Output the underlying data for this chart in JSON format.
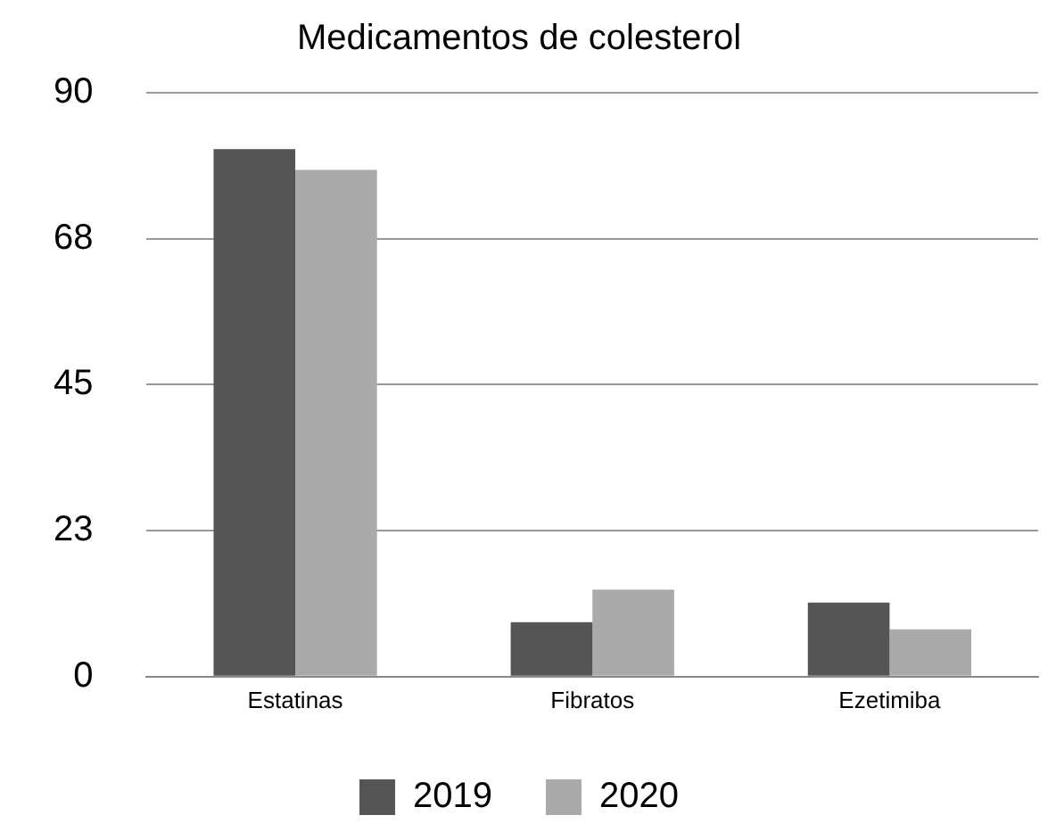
{
  "chart_data": {
    "type": "bar",
    "title": "Medicamentos de colesterol",
    "categories": [
      "Estatinas",
      "Fibratos",
      "Ezetimiba"
    ],
    "series": [
      {
        "name": "2019",
        "color": "#555555",
        "values": [
          81.3,
          8.4,
          11.4
        ]
      },
      {
        "name": "2020",
        "color": "#aaaaaa",
        "values": [
          78.1,
          13.4,
          7.3
        ]
      }
    ],
    "ylim": [
      0,
      90
    ],
    "yticks": [
      0,
      {
        "value": 22.5,
        "label": "23"
      },
      45,
      {
        "value": 67.5,
        "label": "68"
      },
      90
    ],
    "grid": "y",
    "legend": "bottom"
  }
}
